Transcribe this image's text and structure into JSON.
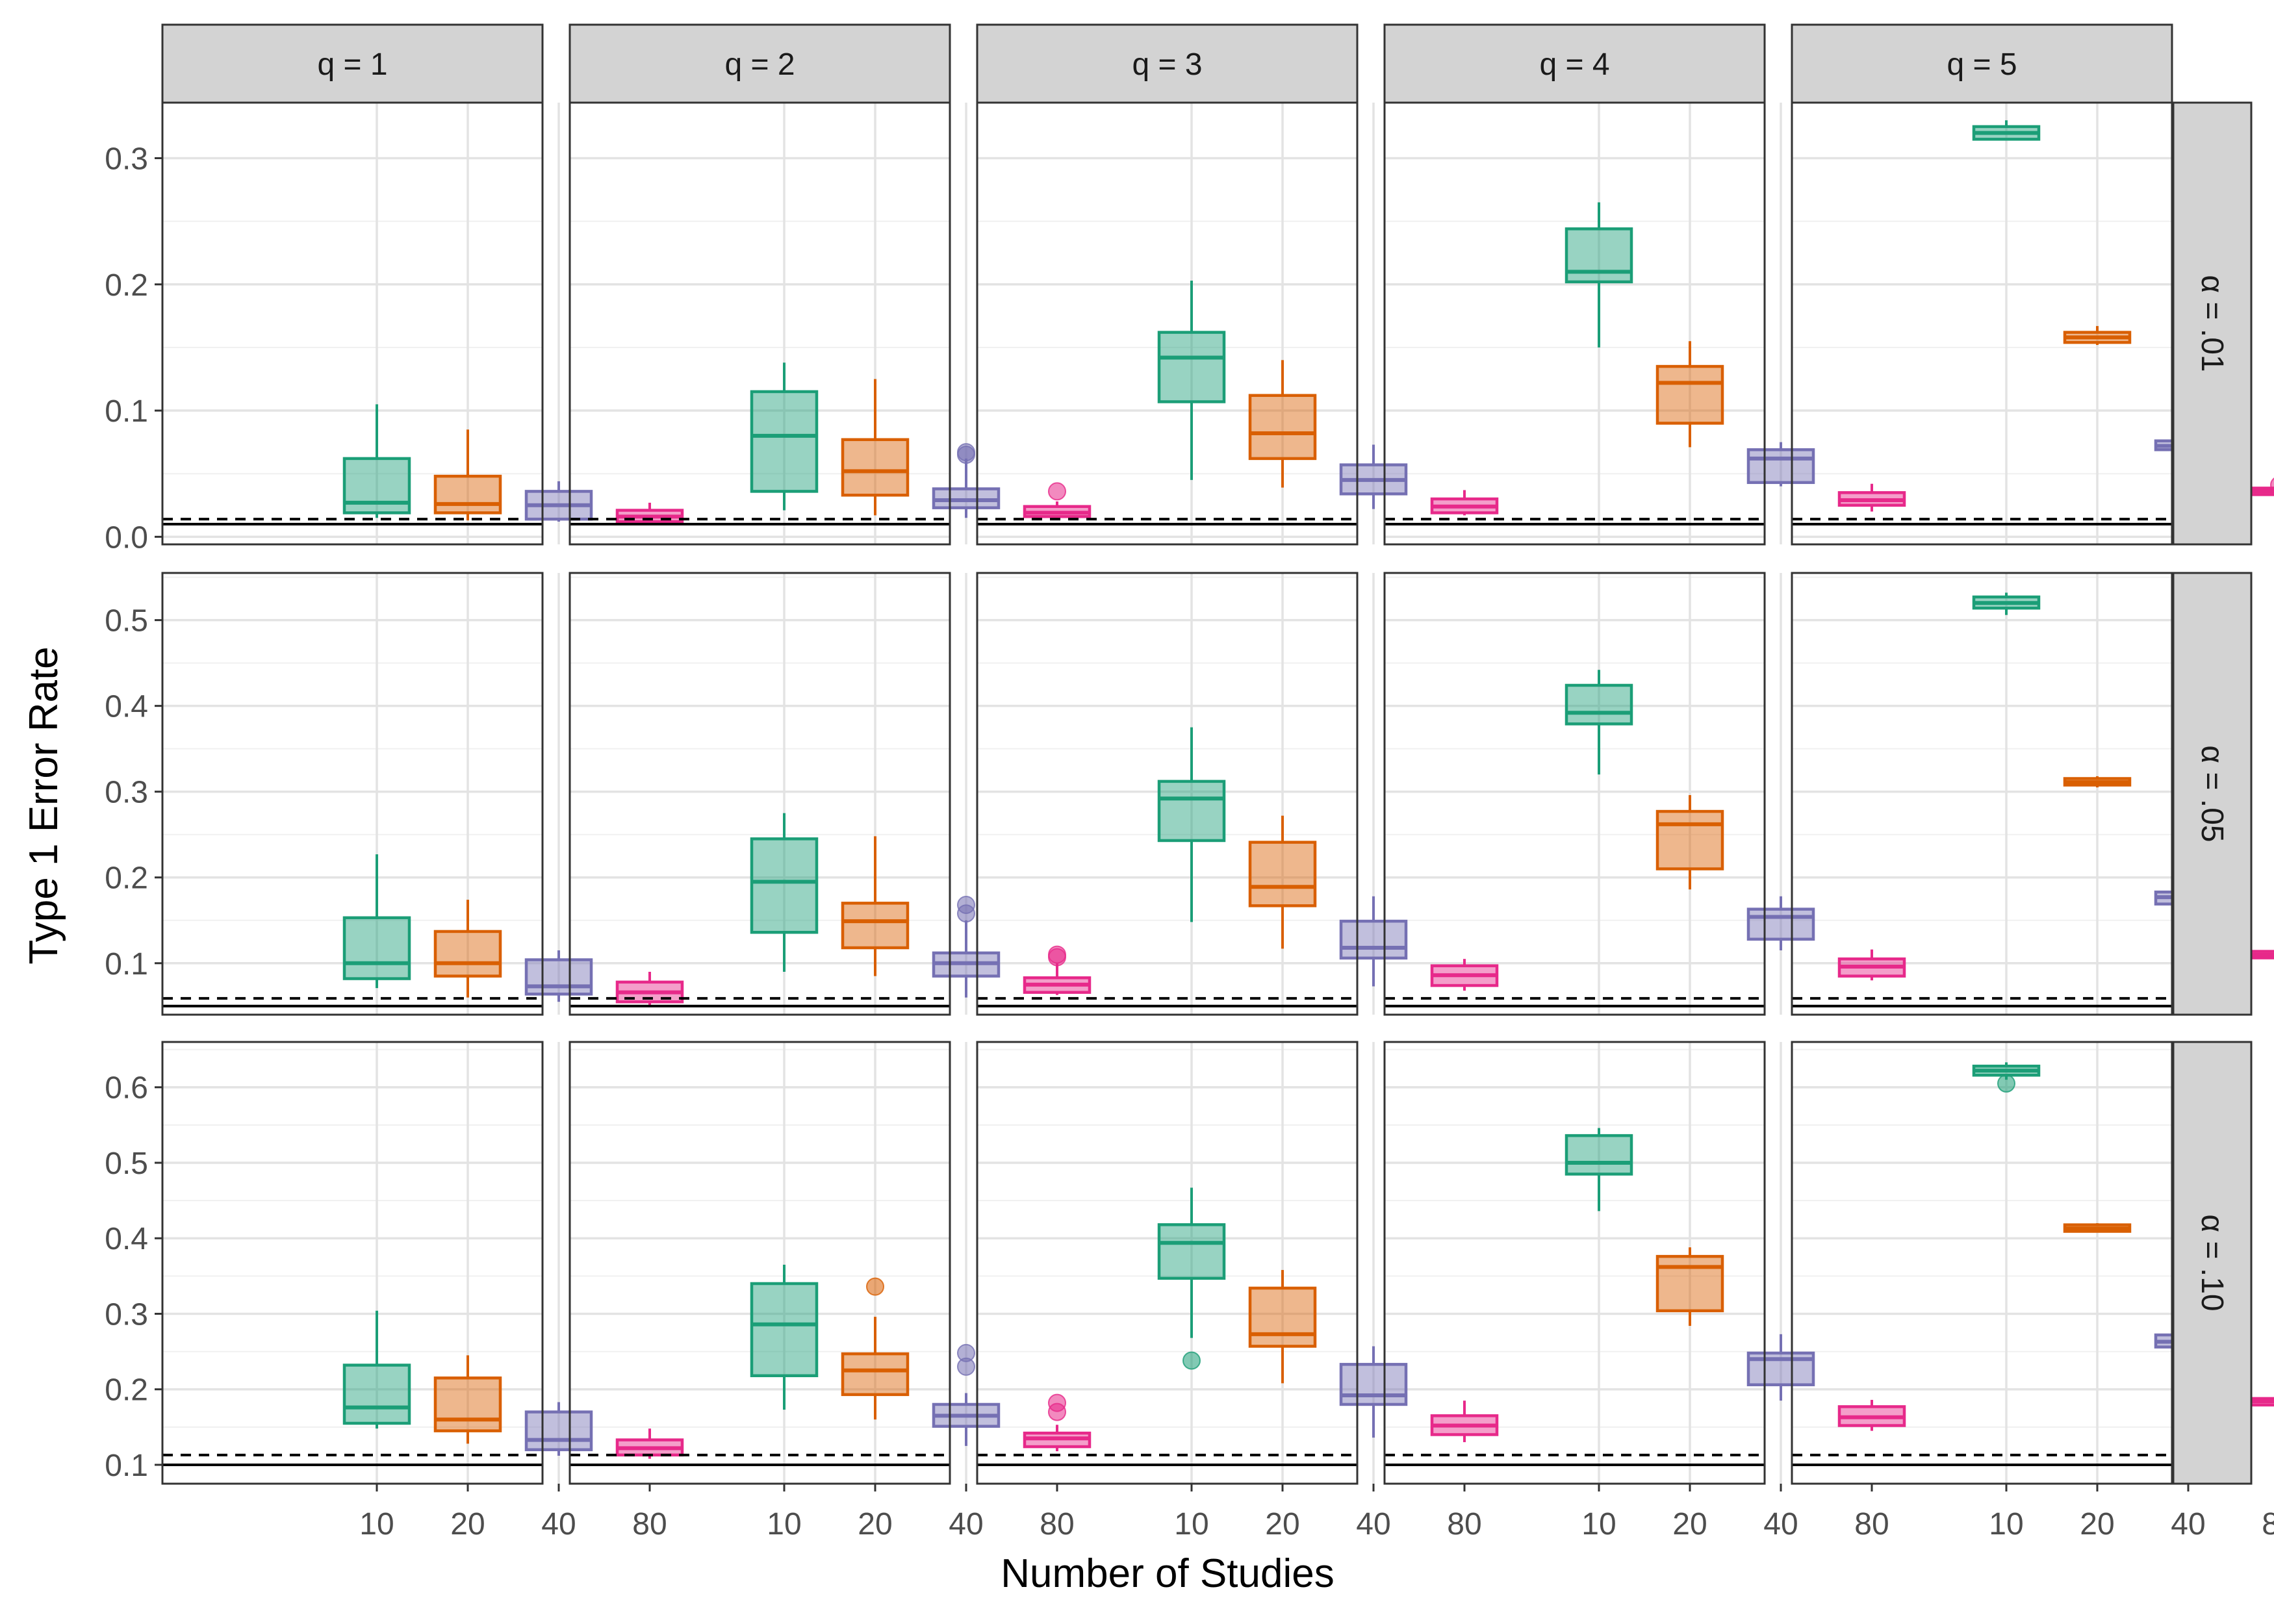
{
  "chart_data": {
    "type": "boxplot-facet-grid",
    "xlabel": "Number of Studies",
    "ylabel": "Type 1 Error Rate",
    "categories": [
      "10",
      "20",
      "40",
      "80"
    ],
    "series_colors": [
      "#1B9E77",
      "#D95F02",
      "#7570B3",
      "#E7298A"
    ],
    "col_labels": [
      "q = 1",
      "q = 2",
      "q = 3",
      "q = 4",
      "q = 5"
    ],
    "rows": [
      {
        "label": "α = .01",
        "ylim": [
          -0.006,
          0.344
        ],
        "yticks": [
          0.0,
          0.1,
          0.2,
          0.3
        ],
        "ytick_labels": [
          "0.0",
          "0.1",
          "0.2",
          "0.3"
        ],
        "solid_line": 0.01,
        "dashed_line": 0.014,
        "panels": [
          [
            {
              "lo": 0.015,
              "q1": 0.019,
              "med": 0.027,
              "q3": 0.062,
              "hi": 0.105,
              "out": []
            },
            {
              "lo": 0.013,
              "q1": 0.019,
              "med": 0.026,
              "q3": 0.048,
              "hi": 0.085,
              "out": []
            },
            {
              "lo": 0.012,
              "q1": 0.014,
              "med": 0.025,
              "q3": 0.036,
              "hi": 0.044,
              "out": []
            },
            {
              "lo": 0.011,
              "q1": 0.012,
              "med": 0.016,
              "q3": 0.021,
              "hi": 0.027,
              "out": []
            }
          ],
          [
            {
              "lo": 0.021,
              "q1": 0.036,
              "med": 0.08,
              "q3": 0.115,
              "hi": 0.138,
              "out": []
            },
            {
              "lo": 0.017,
              "q1": 0.033,
              "med": 0.052,
              "q3": 0.077,
              "hi": 0.125,
              "out": []
            },
            {
              "lo": 0.015,
              "q1": 0.023,
              "med": 0.029,
              "q3": 0.038,
              "hi": 0.062,
              "out": [
                0.065,
                0.067
              ]
            },
            {
              "lo": 0.014,
              "q1": 0.016,
              "med": 0.019,
              "q3": 0.024,
              "hi": 0.028,
              "out": [
                0.036
              ]
            }
          ],
          [
            {
              "lo": 0.045,
              "q1": 0.107,
              "med": 0.142,
              "q3": 0.162,
              "hi": 0.203,
              "out": []
            },
            {
              "lo": 0.039,
              "q1": 0.062,
              "med": 0.082,
              "q3": 0.112,
              "hi": 0.14,
              "out": []
            },
            {
              "lo": 0.022,
              "q1": 0.034,
              "med": 0.045,
              "q3": 0.057,
              "hi": 0.073,
              "out": []
            },
            {
              "lo": 0.017,
              "q1": 0.019,
              "med": 0.024,
              "q3": 0.03,
              "hi": 0.037,
              "out": []
            }
          ],
          [
            {
              "lo": 0.15,
              "q1": 0.202,
              "med": 0.21,
              "q3": 0.244,
              "hi": 0.265,
              "out": []
            },
            {
              "lo": 0.071,
              "q1": 0.09,
              "med": 0.122,
              "q3": 0.135,
              "hi": 0.155,
              "out": []
            },
            {
              "lo": 0.04,
              "q1": 0.043,
              "med": 0.062,
              "q3": 0.069,
              "hi": 0.075,
              "out": []
            },
            {
              "lo": 0.02,
              "q1": 0.025,
              "med": 0.029,
              "q3": 0.035,
              "hi": 0.042,
              "out": []
            }
          ],
          [
            {
              "lo": 0.314,
              "q1": 0.315,
              "med": 0.32,
              "q3": 0.325,
              "hi": 0.33,
              "out": []
            },
            {
              "lo": 0.152,
              "q1": 0.154,
              "med": 0.158,
              "q3": 0.162,
              "hi": 0.167,
              "out": []
            },
            {
              "lo": 0.066,
              "q1": 0.069,
              "med": 0.072,
              "q3": 0.076,
              "hi": 0.08,
              "out": []
            },
            {
              "lo": 0.033,
              "q1": 0.034,
              "med": 0.036,
              "q3": 0.038,
              "hi": 0.04,
              "out": [
                0.041
              ]
            }
          ]
        ]
      },
      {
        "label": "α = .05",
        "ylim": [
          0.04,
          0.555
        ],
        "yticks": [
          0.1,
          0.2,
          0.3,
          0.4,
          0.5
        ],
        "ytick_labels": [
          "0.1",
          "0.2",
          "0.3",
          "0.4",
          "0.5"
        ],
        "solid_line": 0.05,
        "dashed_line": 0.059,
        "panels": [
          [
            {
              "lo": 0.071,
              "q1": 0.082,
              "med": 0.1,
              "q3": 0.153,
              "hi": 0.227,
              "out": []
            },
            {
              "lo": 0.06,
              "q1": 0.085,
              "med": 0.1,
              "q3": 0.137,
              "hi": 0.174,
              "out": []
            },
            {
              "lo": 0.055,
              "q1": 0.064,
              "med": 0.073,
              "q3": 0.104,
              "hi": 0.115,
              "out": []
            },
            {
              "lo": 0.05,
              "q1": 0.055,
              "med": 0.066,
              "q3": 0.078,
              "hi": 0.09,
              "out": []
            }
          ],
          [
            {
              "lo": 0.09,
              "q1": 0.136,
              "med": 0.195,
              "q3": 0.245,
              "hi": 0.275,
              "out": []
            },
            {
              "lo": 0.085,
              "q1": 0.118,
              "med": 0.149,
              "q3": 0.17,
              "hi": 0.248,
              "out": []
            },
            {
              "lo": 0.06,
              "q1": 0.085,
              "med": 0.1,
              "q3": 0.112,
              "hi": 0.15,
              "out": [
                0.158,
                0.168
              ]
            },
            {
              "lo": 0.063,
              "q1": 0.066,
              "med": 0.075,
              "q3": 0.083,
              "hi": 0.1,
              "out": [
                0.107,
                0.11
              ]
            }
          ],
          [
            {
              "lo": 0.148,
              "q1": 0.243,
              "med": 0.292,
              "q3": 0.312,
              "hi": 0.375,
              "out": []
            },
            {
              "lo": 0.117,
              "q1": 0.167,
              "med": 0.189,
              "q3": 0.241,
              "hi": 0.272,
              "out": []
            },
            {
              "lo": 0.073,
              "q1": 0.106,
              "med": 0.118,
              "q3": 0.149,
              "hi": 0.178,
              "out": []
            },
            {
              "lo": 0.068,
              "q1": 0.074,
              "med": 0.086,
              "q3": 0.097,
              "hi": 0.105,
              "out": []
            }
          ],
          [
            {
              "lo": 0.32,
              "q1": 0.379,
              "med": 0.392,
              "q3": 0.424,
              "hi": 0.442,
              "out": []
            },
            {
              "lo": 0.186,
              "q1": 0.21,
              "med": 0.262,
              "q3": 0.277,
              "hi": 0.296,
              "out": []
            },
            {
              "lo": 0.115,
              "q1": 0.128,
              "med": 0.154,
              "q3": 0.163,
              "hi": 0.178,
              "out": []
            },
            {
              "lo": 0.08,
              "q1": 0.085,
              "med": 0.096,
              "q3": 0.105,
              "hi": 0.116,
              "out": []
            }
          ],
          [
            {
              "lo": 0.506,
              "q1": 0.514,
              "med": 0.52,
              "q3": 0.527,
              "hi": 0.532,
              "out": []
            },
            {
              "lo": 0.305,
              "q1": 0.308,
              "med": 0.311,
              "q3": 0.315,
              "hi": 0.318,
              "out": []
            },
            {
              "lo": 0.16,
              "q1": 0.169,
              "med": 0.177,
              "q3": 0.183,
              "hi": 0.19,
              "out": []
            },
            {
              "lo": 0.107,
              "q1": 0.108,
              "med": 0.11,
              "q3": 0.112,
              "hi": 0.114,
              "out": []
            }
          ]
        ]
      },
      {
        "label": "α = .10",
        "ylim": [
          0.075,
          0.66
        ],
        "yticks": [
          0.1,
          0.2,
          0.3,
          0.4,
          0.5,
          0.6
        ],
        "ytick_labels": [
          "0.1",
          "0.2",
          "0.3",
          "0.4",
          "0.5",
          "0.6"
        ],
        "solid_line": 0.1,
        "dashed_line": 0.113,
        "panels": [
          [
            {
              "lo": 0.148,
              "q1": 0.155,
              "med": 0.176,
              "q3": 0.232,
              "hi": 0.304,
              "out": []
            },
            {
              "lo": 0.128,
              "q1": 0.145,
              "med": 0.16,
              "q3": 0.215,
              "hi": 0.245,
              "out": []
            },
            {
              "lo": 0.112,
              "q1": 0.12,
              "med": 0.133,
              "q3": 0.17,
              "hi": 0.183,
              "out": []
            },
            {
              "lo": 0.108,
              "q1": 0.113,
              "med": 0.122,
              "q3": 0.133,
              "hi": 0.148,
              "out": []
            }
          ],
          [
            {
              "lo": 0.173,
              "q1": 0.218,
              "med": 0.286,
              "q3": 0.34,
              "hi": 0.365,
              "out": []
            },
            {
              "lo": 0.16,
              "q1": 0.193,
              "med": 0.225,
              "q3": 0.247,
              "hi": 0.296,
              "out": [
                0.336
              ]
            },
            {
              "lo": 0.125,
              "q1": 0.151,
              "med": 0.165,
              "q3": 0.18,
              "hi": 0.195,
              "out": [
                0.23,
                0.248
              ]
            },
            {
              "lo": 0.118,
              "q1": 0.124,
              "med": 0.135,
              "q3": 0.142,
              "hi": 0.153,
              "out": [
                0.17,
                0.182
              ]
            }
          ],
          [
            {
              "lo": 0.268,
              "q1": 0.347,
              "med": 0.394,
              "q3": 0.418,
              "hi": 0.467,
              "out": [
                0.238
              ]
            },
            {
              "lo": 0.208,
              "q1": 0.257,
              "med": 0.273,
              "q3": 0.334,
              "hi": 0.358,
              "out": []
            },
            {
              "lo": 0.136,
              "q1": 0.18,
              "med": 0.192,
              "q3": 0.233,
              "hi": 0.257,
              "out": []
            },
            {
              "lo": 0.13,
              "q1": 0.14,
              "med": 0.152,
              "q3": 0.165,
              "hi": 0.185,
              "out": []
            }
          ],
          [
            {
              "lo": 0.436,
              "q1": 0.485,
              "med": 0.5,
              "q3": 0.536,
              "hi": 0.546,
              "out": []
            },
            {
              "lo": 0.284,
              "q1": 0.304,
              "med": 0.362,
              "q3": 0.376,
              "hi": 0.388,
              "out": []
            },
            {
              "lo": 0.185,
              "q1": 0.206,
              "med": 0.24,
              "q3": 0.248,
              "hi": 0.273,
              "out": []
            },
            {
              "lo": 0.145,
              "q1": 0.152,
              "med": 0.163,
              "q3": 0.177,
              "hi": 0.186,
              "out": []
            }
          ],
          [
            {
              "lo": 0.61,
              "q1": 0.616,
              "med": 0.622,
              "q3": 0.628,
              "hi": 0.633,
              "out": [
                0.605
              ]
            },
            {
              "lo": 0.408,
              "q1": 0.41,
              "med": 0.413,
              "q3": 0.417,
              "hi": 0.42,
              "out": []
            },
            {
              "lo": 0.243,
              "q1": 0.256,
              "med": 0.263,
              "q3": 0.272,
              "hi": 0.281,
              "out": []
            },
            {
              "lo": 0.18,
              "q1": 0.181,
              "med": 0.184,
              "q3": 0.186,
              "hi": 0.188,
              "out": []
            }
          ]
        ]
      }
    ]
  }
}
